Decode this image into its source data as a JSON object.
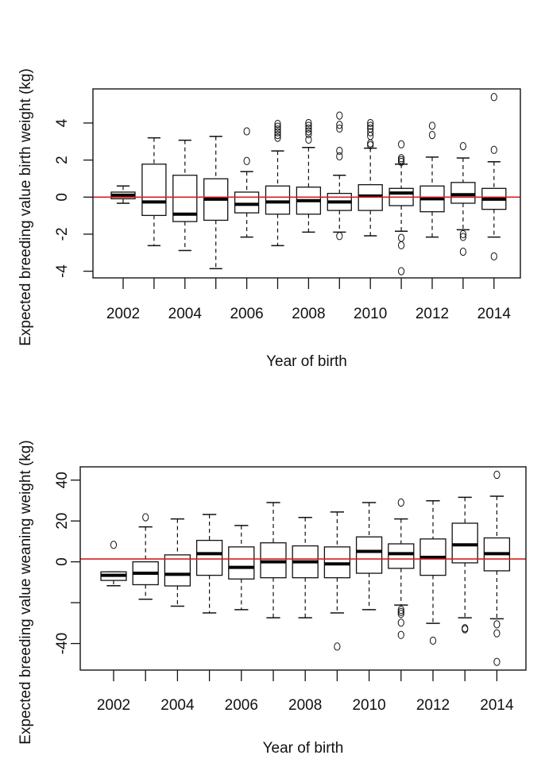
{
  "chart_data": [
    {
      "type": "box",
      "xlabel": "Year of birth",
      "ylabel": "Expected breeding value birth weight (kg)",
      "categories": [
        "2002",
        "2003",
        "2004",
        "2005",
        "2006",
        "2007",
        "2008",
        "2009",
        "2010",
        "2011",
        "2012",
        "2013",
        "2014"
      ],
      "x_tick_labels": [
        "2002",
        "2004",
        "2006",
        "2008",
        "2010",
        "2012",
        "2014"
      ],
      "y_ticks": [
        -4,
        -2,
        0,
        2,
        4
      ],
      "y_tick_labels": [
        "-4",
        "-2",
        "0",
        "2",
        "4"
      ],
      "ylim": [
        -4.36,
        5.84
      ],
      "reference_line": {
        "y": 0,
        "color": "#d42020"
      },
      "boxes": [
        {
          "lo": -0.33,
          "q1": -0.09,
          "med": 0.1,
          "q3": 0.27,
          "hi": 0.6,
          "out": []
        },
        {
          "lo": -2.62,
          "q1": -0.99,
          "med": -0.26,
          "q3": 1.78,
          "hi": 3.2,
          "out": []
        },
        {
          "lo": -2.88,
          "q1": -1.32,
          "med": -0.92,
          "q3": 1.18,
          "hi": 3.07,
          "out": []
        },
        {
          "lo": -3.86,
          "q1": -1.25,
          "med": -0.11,
          "q3": 0.99,
          "hi": 3.28,
          "out": []
        },
        {
          "lo": -2.16,
          "q1": -0.85,
          "med": -0.39,
          "q3": 0.27,
          "hi": 1.38,
          "out": [
            1.95,
            3.55
          ]
        },
        {
          "lo": -2.62,
          "q1": -0.92,
          "med": -0.26,
          "q3": 0.6,
          "hi": 2.49,
          "out": [
            3.2,
            3.35,
            3.5,
            3.65,
            3.8,
            3.95
          ]
        },
        {
          "lo": -1.89,
          "q1": -0.92,
          "med": -0.19,
          "q3": 0.54,
          "hi": 2.68,
          "out": [
            3.1,
            3.4,
            3.55,
            3.7,
            3.85,
            4.0
          ]
        },
        {
          "lo": -1.89,
          "q1": -0.72,
          "med": -0.26,
          "q3": 0.2,
          "hi": 1.18,
          "out": [
            -2.1,
            2.2,
            2.5,
            3.7,
            3.9,
            4.4
          ]
        },
        {
          "lo": -2.09,
          "q1": -0.72,
          "med": 0.06,
          "q3": 0.67,
          "hi": 2.64,
          "out": [
            2.8,
            2.9,
            3.3,
            3.5,
            3.7,
            3.85,
            4.0
          ]
        },
        {
          "lo": -1.84,
          "q1": -0.46,
          "med": 0.22,
          "q3": 0.47,
          "hi": 1.78,
          "out": [
            1.9,
            2.0,
            2.1,
            2.85,
            -2.2,
            -2.6,
            -4.0
          ]
        },
        {
          "lo": -2.16,
          "q1": -0.79,
          "med": -0.09,
          "q3": 0.6,
          "hi": 2.16,
          "out": [
            3.35,
            3.85
          ]
        },
        {
          "lo": -1.76,
          "q1": -0.33,
          "med": 0.13,
          "q3": 0.79,
          "hi": 2.11,
          "out": [
            -2.0,
            -2.15,
            -2.95,
            2.75
          ]
        },
        {
          "lo": -2.16,
          "q1": -0.66,
          "med": -0.11,
          "q3": 0.47,
          "hi": 1.91,
          "out": [
            2.55,
            5.4,
            -3.2
          ]
        }
      ]
    },
    {
      "type": "box",
      "xlabel": "Year of birth",
      "ylabel": "Expected breeding value weaning weight (kg)",
      "categories": [
        "2002",
        "2003",
        "2004",
        "2005",
        "2006",
        "2007",
        "2008",
        "2009",
        "2010",
        "2011",
        "2012",
        "2013",
        "2014"
      ],
      "x_tick_labels": [
        "2002",
        "2004",
        "2006",
        "2008",
        "2010",
        "2012",
        "2014"
      ],
      "y_ticks": [
        -40,
        -20,
        0,
        20,
        40
      ],
      "y_tick_labels": [
        "-40",
        "",
        "0",
        "20",
        "40"
      ],
      "ylim": [
        -53,
        46.5
      ],
      "reference_line": {
        "y": 1.4,
        "color": "#d42020"
      },
      "boxes": [
        {
          "lo": -11.7,
          "q1": -9.1,
          "med": -6.6,
          "q3": -4.9,
          "hi": -4.9,
          "out": [
            8.3
          ]
        },
        {
          "lo": -18.3,
          "q1": -11.2,
          "med": -5.6,
          "q3": 0,
          "hi": 17.1,
          "out": [
            21.8
          ]
        },
        {
          "lo": -21.7,
          "q1": -11.8,
          "med": -6.1,
          "q3": 3.4,
          "hi": 21.0,
          "out": []
        },
        {
          "lo": -25.0,
          "q1": -6.6,
          "med": 4.0,
          "q3": 10.5,
          "hi": 23.2,
          "out": []
        },
        {
          "lo": -23.4,
          "q1": -8.4,
          "med": -2.7,
          "q3": 7.3,
          "hi": 17.8,
          "out": []
        },
        {
          "lo": -27.4,
          "q1": -7.8,
          "med": 0,
          "q3": 9.3,
          "hi": 29.0,
          "out": []
        },
        {
          "lo": -27.4,
          "q1": -7.8,
          "med": 0,
          "q3": 7.8,
          "hi": 21.7,
          "out": []
        },
        {
          "lo": -25.0,
          "q1": -7.8,
          "med": -1.0,
          "q3": 7.3,
          "hi": 24.4,
          "out": [
            -41.5
          ]
        },
        {
          "lo": -23.4,
          "q1": -5.6,
          "med": 5.1,
          "q3": 12.2,
          "hi": 29.0,
          "out": []
        },
        {
          "lo": -21.2,
          "q1": -3.2,
          "med": 4.0,
          "q3": 8.8,
          "hi": 21.0,
          "out": [
            29.0,
            -23.5,
            -24.5,
            -25.5,
            -29.8,
            -35.8
          ]
        },
        {
          "lo": -30.1,
          "q1": -6.6,
          "med": 2.2,
          "q3": 11.2,
          "hi": 29.9,
          "out": [
            -38.6
          ]
        },
        {
          "lo": -27.4,
          "q1": -0.5,
          "med": 8.3,
          "q3": 18.9,
          "hi": 31.6,
          "out": [
            -32.5,
            -33.0
          ]
        },
        {
          "lo": -27.9,
          "q1": -4.4,
          "med": 4.0,
          "q3": 11.7,
          "hi": 32.1,
          "out": [
            42.6,
            -30.6,
            -35.0,
            -49.0
          ]
        }
      ]
    }
  ]
}
